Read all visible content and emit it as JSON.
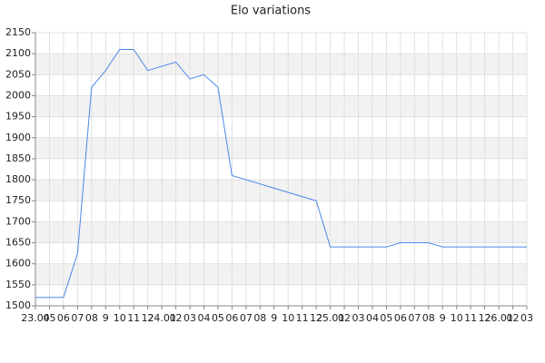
{
  "chart_data": {
    "type": "line",
    "title": "Elo variations",
    "categories": [
      "23.04",
      "05",
      "06",
      "07",
      "08",
      "9",
      "10",
      "11",
      "12",
      "24.01",
      "02",
      "03",
      "04",
      "05",
      "06",
      "07",
      "08",
      "9",
      "10",
      "11",
      "12",
      "25.01",
      "02",
      "03",
      "04",
      "05",
      "06",
      "07",
      "08",
      "9",
      "10",
      "11",
      "12",
      "26.01",
      "02",
      "03"
    ],
    "values": [
      1520,
      1520,
      1520,
      1625,
      2020,
      2060,
      2110,
      2110,
      2060,
      2070,
      2080,
      2040,
      2050,
      2020,
      1810,
      1800,
      1790,
      1780,
      1770,
      1760,
      1750,
      1640,
      1640,
      1640,
      1640,
      1640,
      1650,
      1650,
      1650,
      1640,
      1640,
      1640,
      1640,
      1640,
      1640,
      1640
    ],
    "color": "#4a86e8",
    "ylim": [
      1500,
      2150
    ],
    "yticks": [
      1500,
      1550,
      1600,
      1650,
      1700,
      1750,
      1800,
      1850,
      1900,
      1950,
      2000,
      2050,
      2100,
      2150
    ],
    "grid": true
  }
}
